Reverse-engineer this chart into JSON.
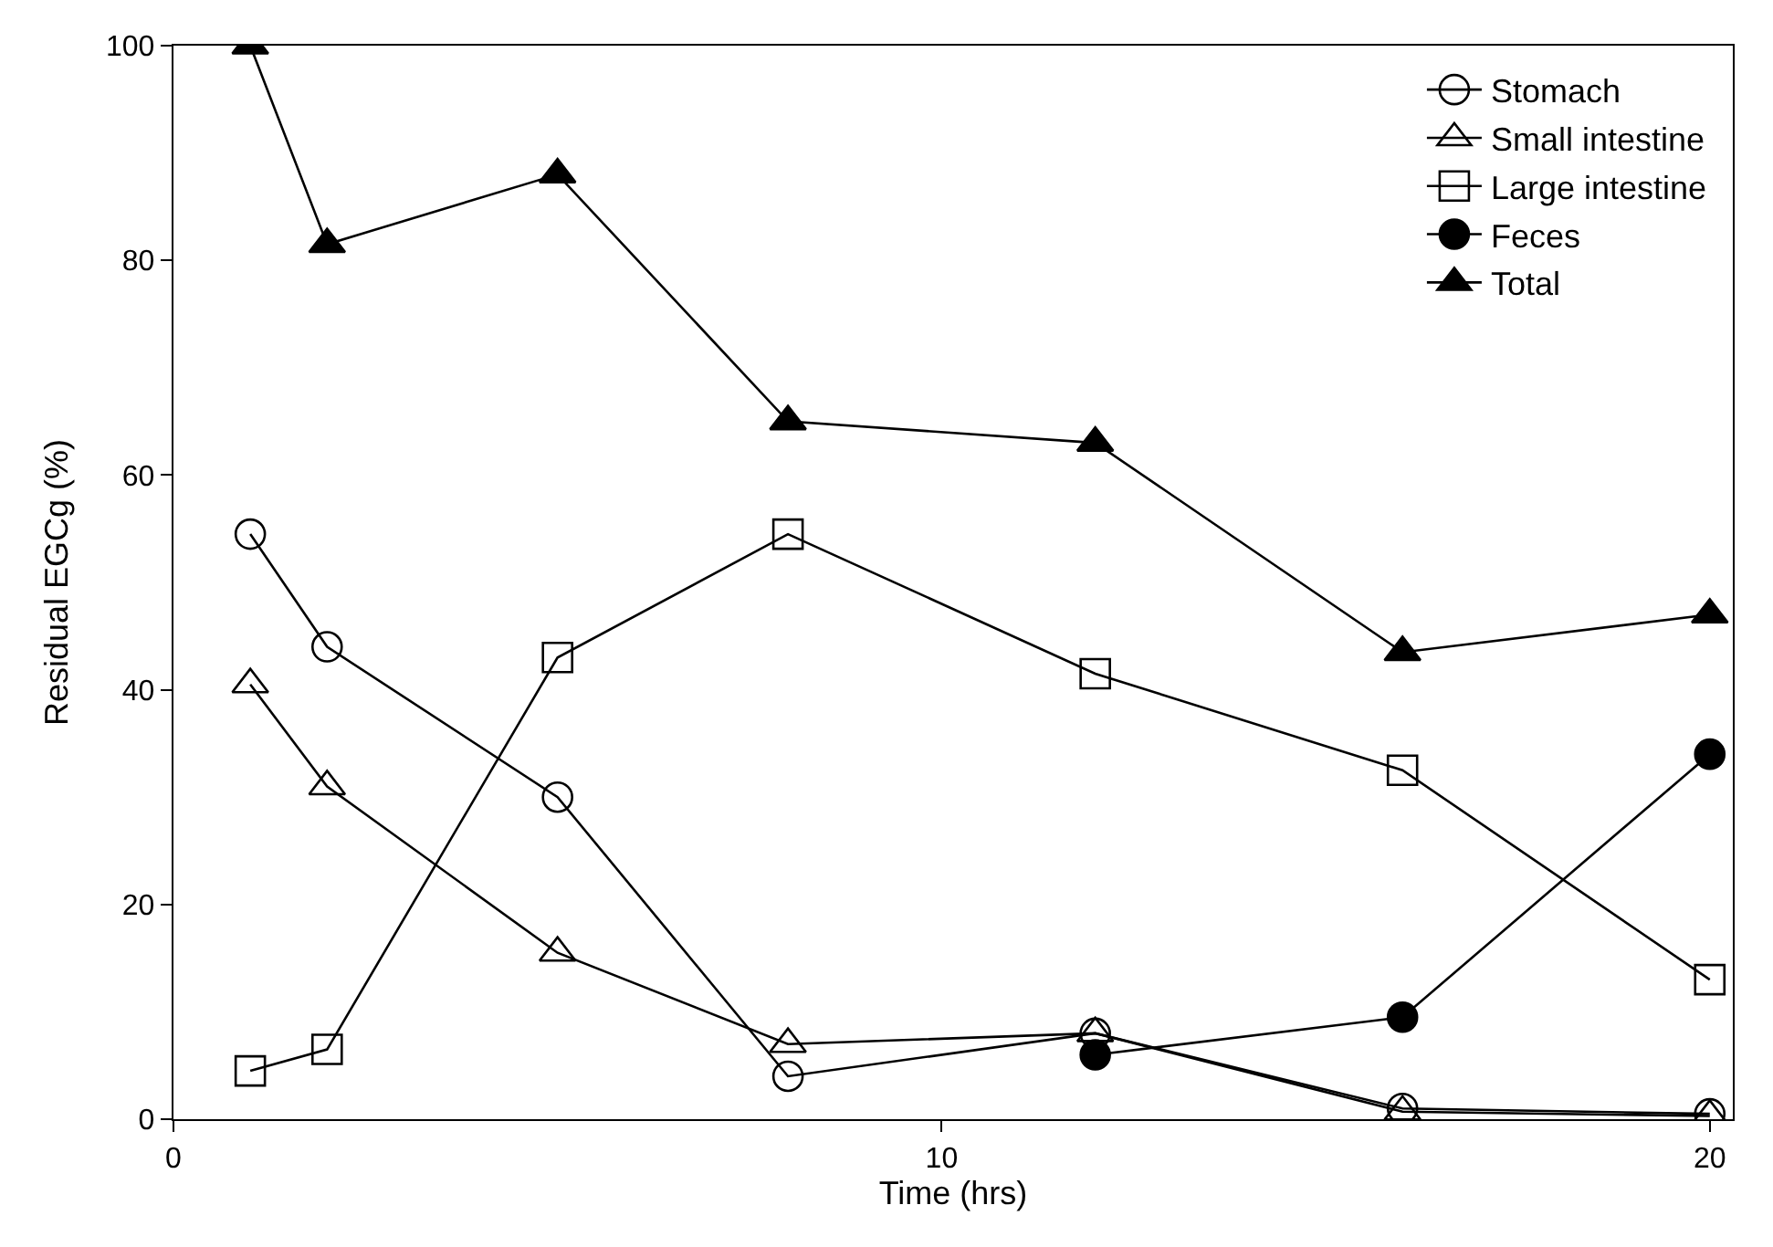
{
  "chart_data": {
    "type": "line",
    "xlabel": "Time (hrs)",
    "ylabel": "Residual EGCg (%)",
    "xlim": [
      0,
      20.3
    ],
    "xticks": [
      0,
      10,
      20
    ],
    "ylim": [
      0,
      100
    ],
    "yticks": [
      0,
      20,
      40,
      60,
      80,
      100
    ],
    "legend": "top right",
    "line_style": "solid",
    "series": [
      {
        "name": "Stomach",
        "color": "#000000",
        "marker": "circle",
        "x": [
          1,
          2,
          5,
          8,
          12,
          16,
          20
        ],
        "values": [
          54.5,
          44,
          30,
          4,
          8,
          1,
          0.5
        ]
      },
      {
        "name": "Small intestine",
        "color": "#000000",
        "marker": "triangle",
        "x": [
          1,
          2,
          5,
          8,
          12,
          16,
          20
        ],
        "values": [
          40.5,
          31,
          15.5,
          7,
          8,
          0.7,
          0.3
        ]
      },
      {
        "name": "Large intestine",
        "color": "#000000",
        "marker": "square",
        "x": [
          1,
          2,
          5,
          8,
          12,
          16,
          20
        ],
        "values": [
          4.5,
          6.5,
          43,
          54.5,
          41.5,
          32.5,
          13
        ]
      },
      {
        "name": "Feces",
        "color": "#000000",
        "marker": "circle",
        "x": [
          12,
          16,
          20
        ],
        "values": [
          6,
          9.5,
          34
        ]
      },
      {
        "name": "Total",
        "color": "#000000",
        "marker": "triangle",
        "x": [
          1,
          2,
          5,
          8,
          12,
          16,
          20
        ],
        "values": [
          100,
          81.5,
          88,
          65,
          63,
          43.5,
          47
        ]
      }
    ]
  }
}
